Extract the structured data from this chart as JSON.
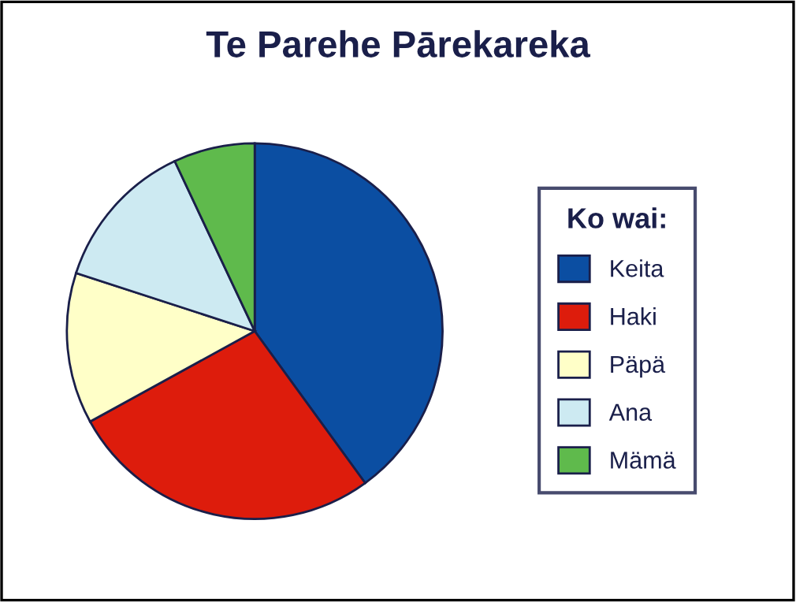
{
  "chart_data": {
    "type": "pie",
    "title": "Te Parehe Pārekareka",
    "legend_title": "Ko wai:",
    "legend": "right",
    "categories": [
      "Keita",
      "Haki",
      "Päpä",
      "Ana",
      "Mämä"
    ],
    "values": [
      40,
      27,
      13,
      13,
      7
    ],
    "colors": [
      "#0b4ea2",
      "#dd1c0c",
      "#ffffc8",
      "#cdeaf2",
      "#5fba4c"
    ]
  }
}
